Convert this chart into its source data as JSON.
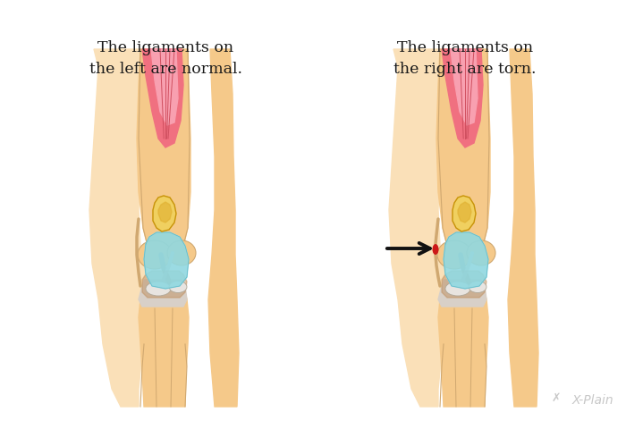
{
  "bg_color": "#ffffff",
  "text_left_line1": "The ligaments on",
  "text_left_line2": "the left are normal.",
  "text_right_line1": "The ligaments on",
  "text_right_line2": "the right are torn.",
  "text_fontsize": 12.5,
  "text_color": "#1a1a1a",
  "watermark": "X-Plain",
  "watermark_color": "#c8c8c8",
  "skin_color": "#f5c98a",
  "skin_shade": "#f0b870",
  "skin_light": "#fae0b8",
  "pink_color": "#f07080",
  "pink_light": "#f8a0b0",
  "pink_pale": "#ffd0d8",
  "cyan_color": "#90d8e0",
  "cyan_light": "#b8eaf0",
  "gold_dark": "#c8920a",
  "gold_color": "#e0b030",
  "gold_light": "#f0d060",
  "gray_color": "#b0a898",
  "gray_light": "#d8d0c8",
  "gray_pale": "#e8e4e0",
  "brown_color": "#c09060",
  "red_dot": "#cc1818",
  "arrow_color": "#111111",
  "line_color": "#c8a060",
  "line_dark": "#a07030",
  "outline_color": "#d0a870"
}
